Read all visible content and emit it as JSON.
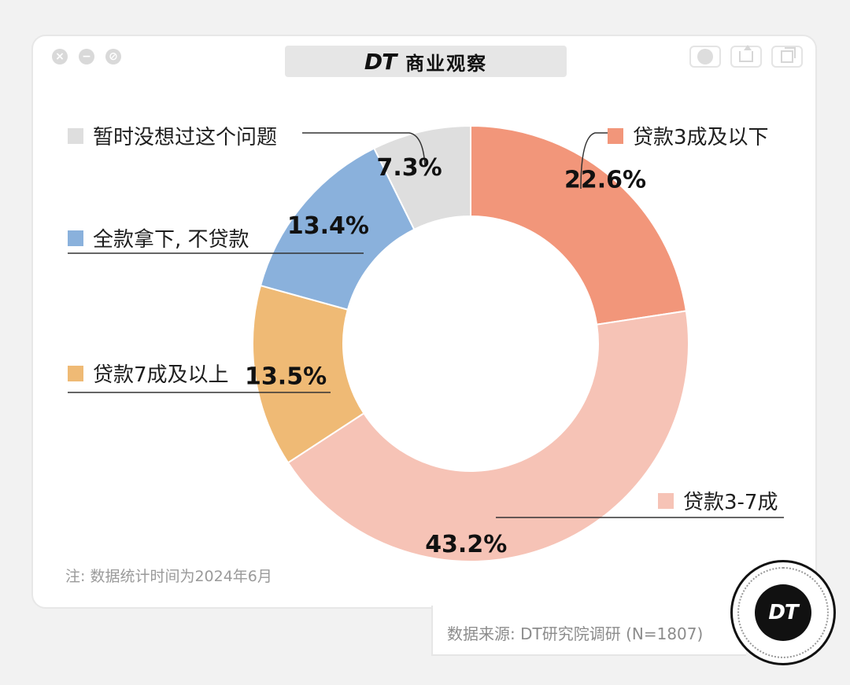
{
  "window": {
    "brand_mark": "DT",
    "brand_name": "商业观察"
  },
  "chart_data": {
    "type": "pie",
    "categories": [
      "贷款3成及以下",
      "贷款3-7成",
      "贷款7成及以上",
      "全款拿下，不贷款",
      "暂时没想过这个问题"
    ],
    "values": [
      22.6,
      43.2,
      13.5,
      13.4,
      7.3
    ],
    "value_labels": [
      "22.6%",
      "43.2%",
      "13.5%",
      "13.4%",
      "7.3%"
    ],
    "legend_labels": [
      "贷款3成及以下",
      "贷款3-7成",
      "贷款7成及以上",
      "全款拿下, 不贷款",
      "暂时没想过这个问题"
    ],
    "colors": [
      "#f2967a",
      "#f6c3b6",
      "#efba75",
      "#8ab1dc",
      "#dedede"
    ],
    "donut": true,
    "start": "12 o'clock, clockwise"
  },
  "note": "注: 数据统计时间为2024年6月",
  "source": "数据来源: DT研究院调研 (N=1807)",
  "badge": "DT"
}
